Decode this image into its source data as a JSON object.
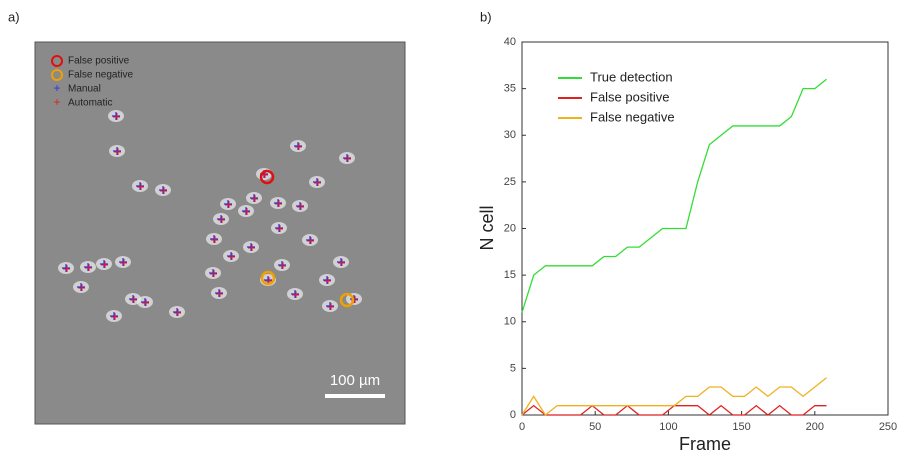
{
  "panel_a": {
    "label": "a)",
    "legend": [
      "False positive",
      "False negative",
      "Manual",
      "Automatic"
    ],
    "scale_bar": "100 µm"
  },
  "panel_b": {
    "label": "b)"
  },
  "chart_data": {
    "type": "line",
    "xlabel": "Frame",
    "ylabel": "N cell",
    "x": [
      0,
      8,
      16,
      24,
      32,
      40,
      48,
      56,
      64,
      72,
      80,
      88,
      96,
      104,
      112,
      120,
      128,
      136,
      144,
      152,
      160,
      168,
      176,
      184,
      192,
      200,
      208
    ],
    "series": [
      {
        "name": "True detection",
        "color": "#33dd33",
        "values": [
          11,
          15,
          16,
          16,
          16,
          16,
          16,
          17,
          17,
          18,
          18,
          19,
          20,
          20,
          20,
          25,
          29,
          30,
          31,
          31,
          31,
          31,
          31,
          32,
          35,
          35,
          36
        ]
      },
      {
        "name": "False positive",
        "color": "#dd2222",
        "values": [
          0,
          1,
          0,
          0,
          0,
          0,
          1,
          0,
          0,
          1,
          0,
          0,
          0,
          1,
          1,
          1,
          0,
          1,
          0,
          0,
          1,
          0,
          1,
          0,
          0,
          1,
          1
        ]
      },
      {
        "name": "False negative",
        "color": "#f0b020",
        "values": [
          0,
          2,
          0,
          1,
          1,
          1,
          1,
          1,
          1,
          1,
          1,
          1,
          1,
          1,
          2,
          2,
          3,
          3,
          2,
          2,
          3,
          2,
          3,
          3,
          2,
          3,
          4
        ]
      }
    ],
    "xlim": [
      0,
      250
    ],
    "xticks": [
      0,
      50,
      100,
      150,
      200,
      250
    ],
    "ylim": [
      0,
      40
    ],
    "yticks": [
      0,
      5,
      10,
      15,
      20,
      25,
      30,
      35,
      40
    ]
  }
}
